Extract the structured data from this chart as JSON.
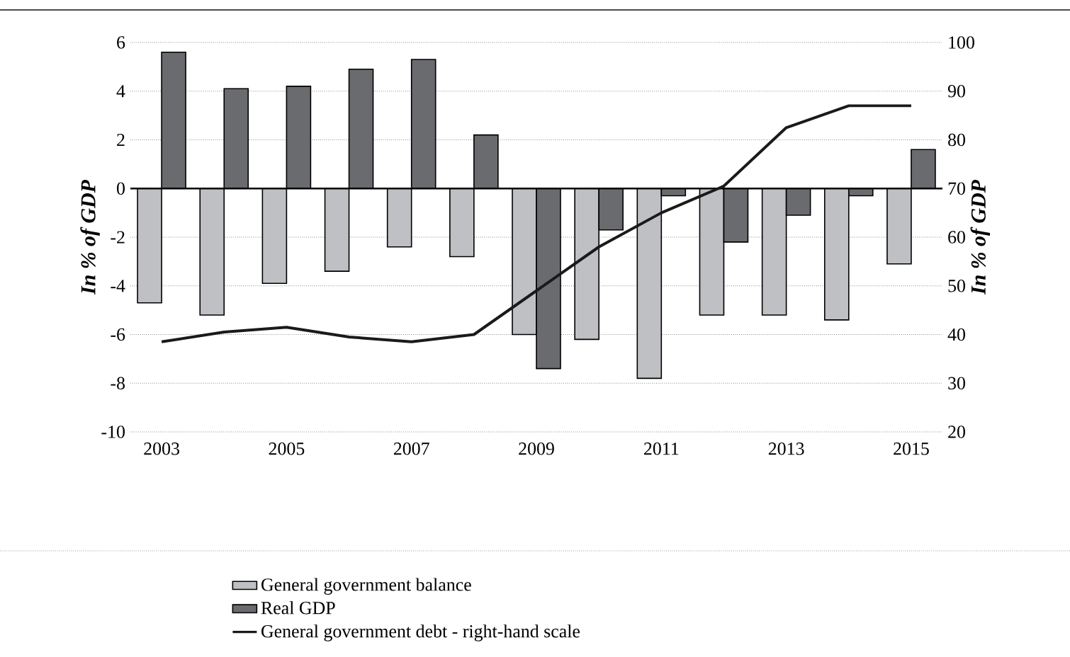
{
  "chart_data": {
    "type": "bar",
    "categories": [
      "2003",
      null,
      "2005",
      null,
      "2007",
      null,
      "2009",
      null,
      "2011",
      null,
      "2013",
      null,
      "2015"
    ],
    "series": [
      {
        "name": "General government balance",
        "color": "#bfc0c3",
        "values": [
          -4.7,
          -5.2,
          -3.9,
          -3.4,
          -2.4,
          -2.8,
          -6.0,
          -6.2,
          -7.8,
          -5.2,
          -5.2,
          -5.4,
          -3.1
        ]
      },
      {
        "name": "Real GDP",
        "color": "#6a6b6e",
        "values": [
          5.6,
          4.1,
          4.2,
          4.9,
          5.3,
          2.2,
          -7.4,
          -1.7,
          -0.3,
          -2.2,
          -1.1,
          -0.3,
          1.6
        ]
      },
      {
        "name": "General government debt - right-hand scale",
        "type": "line",
        "axis": "y2",
        "color": "#1a1a1a",
        "values": [
          38.5,
          40.5,
          41.5,
          39.5,
          38.5,
          40,
          49,
          58,
          65,
          70.5,
          82.5,
          87,
          87
        ]
      }
    ],
    "ylabel": "In % of GDP",
    "y2label": "In % of GDP",
    "ylim": [
      -10,
      6
    ],
    "yticks": [
      -10,
      -8,
      -6,
      -4,
      -2,
      0,
      2,
      4,
      6
    ],
    "y2lim": [
      20,
      100
    ],
    "y2ticks": [
      20,
      30,
      40,
      50,
      60,
      70,
      80,
      90,
      100
    ],
    "grid": "y",
    "legend": "bottom"
  }
}
